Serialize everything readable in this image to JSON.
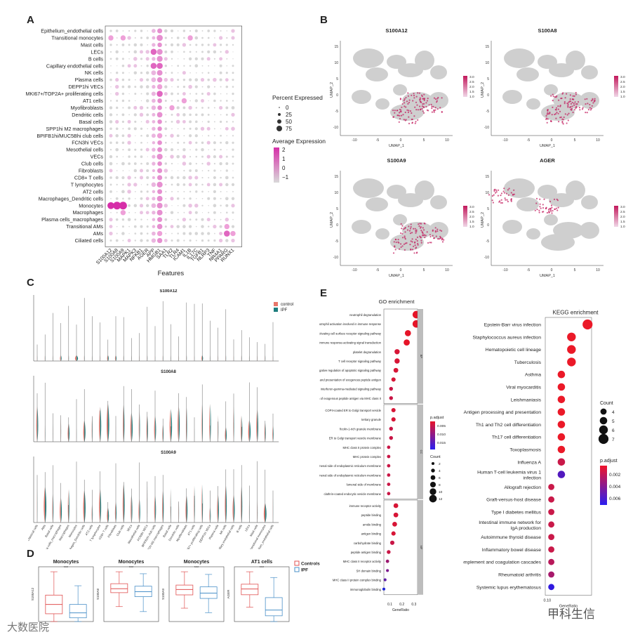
{
  "labels": {
    "A": "A",
    "B": "B",
    "C": "C",
    "D": "D",
    "E": "E"
  },
  "watermarks": {
    "left": "大数医院",
    "right": "甲科生信"
  },
  "chart_data": [
    {
      "id": "A",
      "type": "dotplot",
      "xlabel": "Features",
      "features": [
        "S100A12",
        "S100A8",
        "S100A9",
        "MAPK1",
        "MAPK3",
        "NFKB1",
        "AGER",
        "APP",
        "HMGB1",
        "SAA1",
        "TLR2",
        "TLR4",
        "ICAM1",
        "IL1B",
        "IL17C",
        "TGFB1",
        "NLRP3",
        "TNF",
        "NR4A1",
        "PPARG",
        "RUNX1"
      ],
      "cell_types": [
        "Epithelium_endothelial cells",
        "Transitional monocytes",
        "Mast cells",
        "LECs",
        "B cells",
        "Capillary endothelial cells",
        "NK cells",
        "Plasma cells",
        "DEPP1hi VECs",
        "MKI67+/TOP2A+ proliferating cells",
        "AT1 cells",
        "Myofibroblasts",
        "Dendritic cells",
        "Basal cells",
        "SPP1hi M2 macrophages",
        "BPIFB1hi/MUC5Bhi club cells",
        "FCN3hi VECs",
        "Mesothelial cells",
        "VECs",
        "Club cells",
        "Fibroblasts",
        "CD8+ T cells",
        "T lymphocytes",
        "AT2 cells",
        "Macrophages_Dendritic cells",
        "Monocytes",
        "Macrophages",
        "Plasma cells_macrophages",
        "Transitional AMs",
        "AMs",
        "Ciliated cells"
      ],
      "legend_size_title": "Percent Expressed",
      "legend_size_values": [
        "0",
        "25",
        "50",
        "75"
      ],
      "legend_color_title": "Average Expression",
      "legend_color_values": [
        "2",
        "1",
        "0",
        "−1"
      ]
    },
    {
      "id": "B",
      "type": "umap",
      "panels": [
        "S100A12",
        "S100A8",
        "S100A9",
        "AGER"
      ],
      "xlabel": "UMAP_1",
      "ylabel": "UMAP_2",
      "xticks": [
        "-10",
        "-5",
        "0",
        "5",
        "10"
      ],
      "yticks": [
        "15",
        "10",
        "5",
        "0",
        "-5",
        "-10"
      ],
      "scale_values": [
        "3.0",
        "2.5",
        "2.0",
        "1.5",
        "1.0"
      ]
    },
    {
      "id": "C",
      "type": "violin",
      "panels": [
        "S100A12",
        "S100A8",
        "S100A9"
      ],
      "ylabel": "Expression Level",
      "legend": [
        "control",
        "IPF"
      ],
      "colors": {
        "control": "#e8766a",
        "IPF": "#1d7d7d"
      },
      "cell_types": [
        "Classical cells",
        "AMs",
        "Basal cells",
        "Plasma cells_macrophages",
        "Macrophages",
        "Monocytes",
        "Macrophages_Dendritic cells",
        "AT2 cells",
        "T lymphocytes",
        "CD8+ T cells",
        "Fibroblasts",
        "Club cells",
        "VECs",
        "Mesothelial cells",
        "FCN3hi VECs",
        "BPIFB1hi club cells",
        "SPP1hi M2 macrophages",
        "Basal cells",
        "Dendritic cells",
        "Myofibroblasts",
        "AT1 cells",
        "MKI67+ proliferating cells",
        "DEPP1hi VECs",
        "Plasma cells",
        "NK cells",
        "Capillary endothelial cells",
        "B cells",
        "LECs",
        "Mast cells",
        "Transitional monocytes",
        "Epithelium_endothelial cells"
      ]
    },
    {
      "id": "D",
      "type": "boxplot",
      "legend": [
        "Controls",
        "IPF"
      ],
      "colors": {
        "Controls": "#e05050",
        "IPF": "#4a90c8"
      },
      "panels": [
        {
          "title": "Monocytes",
          "ylabel": "S100A12",
          "sig": "***",
          "controls": {
            "q1": 0.25,
            "med": 0.55,
            "q3": 0.85,
            "lo": 0.0,
            "hi": 1.6
          },
          "ipf": {
            "q1": 0.12,
            "med": 0.28,
            "q3": 0.55,
            "lo": 0.0,
            "hi": 1.15
          }
        },
        {
          "title": "Monocytes",
          "ylabel": "S100A8",
          "sig": "***",
          "controls": {
            "q1": 2.9,
            "med": 3.3,
            "q3": 3.8,
            "lo": 1.5,
            "hi": 5.0
          },
          "ipf": {
            "q1": 2.5,
            "med": 3.0,
            "q3": 3.55,
            "lo": 1.0,
            "hi": 4.8
          }
        },
        {
          "title": "Monocytes",
          "ylabel": "S100A9",
          "sig": "***",
          "controls": {
            "q1": 3.0,
            "med": 3.6,
            "q3": 4.1,
            "lo": 1.5,
            "hi": 5.6
          },
          "ipf": {
            "q1": 2.6,
            "med": 3.2,
            "q3": 3.9,
            "lo": 1.0,
            "hi": 5.3
          }
        },
        {
          "title": "AT1 cells",
          "ylabel": "AGER",
          "sig": "***",
          "controls": {
            "q1": 2.8,
            "med": 3.4,
            "q3": 3.9,
            "lo": 1.5,
            "hi": 5.2
          },
          "ipf": {
            "q1": 0.6,
            "med": 1.2,
            "q3": 2.5,
            "lo": 0.0,
            "hi": 4.6
          }
        }
      ]
    },
    {
      "id": "E-GO",
      "type": "dotplot",
      "title": "GO enrichment",
      "xlabel": "GeneRatio",
      "xticks": [
        "0.1",
        "0.2",
        "0.3"
      ],
      "groups": [
        "BP",
        "CC",
        "MF"
      ],
      "terms": [
        {
          "label": "neutrophil degranulation",
          "group": "BP",
          "x": 0.32,
          "count": 12,
          "padj": 0.001
        },
        {
          "label": "neutrophil activation involved in immune response",
          "group": "BP",
          "x": 0.32,
          "count": 12,
          "padj": 0.001
        },
        {
          "label": "immune response-activating cell surface receptor signaling pathway",
          "group": "BP",
          "x": 0.25,
          "count": 9,
          "padj": 0.001
        },
        {
          "label": "immune response-activating signal transduction",
          "group": "BP",
          "x": 0.24,
          "count": 9,
          "padj": 0.001
        },
        {
          "label": "platelet degranulation",
          "group": "BP",
          "x": 0.16,
          "count": 7,
          "padj": 0.002
        },
        {
          "label": "T cell receptor signaling pathway",
          "group": "BP",
          "x": 0.16,
          "count": 7,
          "padj": 0.002
        },
        {
          "label": "negative regulation of apoptotic signaling pathway",
          "group": "BP",
          "x": 0.15,
          "count": 6,
          "padj": 0.002
        },
        {
          "label": "antigen processing and presentation of exogenous peptide antigen",
          "group": "BP",
          "x": 0.13,
          "count": 5,
          "padj": 0.002
        },
        {
          "label": "interferon-gamma-mediated signaling pathway",
          "group": "BP",
          "x": 0.11,
          "count": 4,
          "padj": 0.003
        },
        {
          "label": "antigen processing and presentation of exogenous peptide antigen via MHC class II",
          "group": "BP",
          "x": 0.11,
          "count": 4,
          "padj": 0.003
        },
        {
          "label": "COPII-coated ER to Golgi transport vesicle",
          "group": "CC",
          "x": 0.13,
          "count": 5,
          "padj": 0.002
        },
        {
          "label": "tertiary granule",
          "group": "CC",
          "x": 0.13,
          "count": 5,
          "padj": 0.002
        },
        {
          "label": "ficolin-1-rich granule membrane",
          "group": "CC",
          "x": 0.11,
          "count": 4,
          "padj": 0.003
        },
        {
          "label": "ER to Golgi transport vesicle membrane",
          "group": "CC",
          "x": 0.11,
          "count": 4,
          "padj": 0.003
        },
        {
          "label": "MHC class II protein complex",
          "group": "CC",
          "x": 0.09,
          "count": 3,
          "padj": 0.003
        },
        {
          "label": "MHC protein complex",
          "group": "CC",
          "x": 0.09,
          "count": 3,
          "padj": 0.003
        },
        {
          "label": "integral component of lumenal side of endoplasmic reticulum membrane",
          "group": "CC",
          "x": 0.09,
          "count": 3,
          "padj": 0.003
        },
        {
          "label": "lumenal side of endoplasmic reticulum membrane",
          "group": "CC",
          "x": 0.09,
          "count": 3,
          "padj": 0.003
        },
        {
          "label": "lumenal side of membrane",
          "group": "CC",
          "x": 0.09,
          "count": 3,
          "padj": 0.003
        },
        {
          "label": "clathrin-coated endocytic vesicle membrane",
          "group": "CC",
          "x": 0.09,
          "count": 3,
          "padj": 0.003
        },
        {
          "label": "immune receptor activity",
          "group": "MF",
          "x": 0.15,
          "count": 6,
          "padj": 0.002
        },
        {
          "label": "peptide binding",
          "group": "MF",
          "x": 0.15,
          "count": 6,
          "padj": 0.002
        },
        {
          "label": "amide binding",
          "group": "MF",
          "x": 0.14,
          "count": 6,
          "padj": 0.002
        },
        {
          "label": "antigen binding",
          "group": "MF",
          "x": 0.13,
          "count": 5,
          "padj": 0.002
        },
        {
          "label": "carbohydrate binding",
          "group": "MF",
          "x": 0.12,
          "count": 5,
          "padj": 0.003
        },
        {
          "label": "peptide antigen binding",
          "group": "MF",
          "x": 0.09,
          "count": 4,
          "padj": 0.003
        },
        {
          "label": "MHC class II receptor activity",
          "group": "MF",
          "x": 0.08,
          "count": 3,
          "padj": 0.006
        },
        {
          "label": "SH domain binding",
          "group": "MF",
          "x": 0.08,
          "count": 2,
          "padj": 0.008
        },
        {
          "label": "MHC class II protein complex binding",
          "group": "MF",
          "x": 0.06,
          "count": 2,
          "padj": 0.01
        },
        {
          "label": "immunoglobulin binding",
          "group": "MF",
          "x": 0.05,
          "count": 2,
          "padj": 0.015
        }
      ],
      "padj_title": "p.adjust",
      "padj_ticks": [
        "0.005",
        "0.010",
        "0.015"
      ],
      "count_title": "Count",
      "count_ticks": [
        "2",
        "4",
        "6",
        "8",
        "10",
        "12"
      ]
    },
    {
      "id": "E-KEGG",
      "type": "dotplot",
      "title": "KEGG enrichment",
      "xlabel": "GeneRatio",
      "xticks": [
        "0.10"
      ],
      "terms": [
        {
          "label": "Epstein-Barr virus infection",
          "x": 0.3,
          "count": 7,
          "padj": 0.001
        },
        {
          "label": "Staphylococcus aureus infection",
          "x": 0.22,
          "count": 6,
          "padj": 0.001
        },
        {
          "label": "Hematopoietic cell lineage",
          "x": 0.22,
          "count": 6,
          "padj": 0.001
        },
        {
          "label": "Tuberculosis",
          "x": 0.22,
          "count": 6,
          "padj": 0.001
        },
        {
          "label": "Asthma",
          "x": 0.17,
          "count": 5,
          "padj": 0.001
        },
        {
          "label": "Viral myocarditis",
          "x": 0.17,
          "count": 5,
          "padj": 0.001
        },
        {
          "label": "Leishmaniasis",
          "x": 0.17,
          "count": 5,
          "padj": 0.001
        },
        {
          "label": "Antigen processing and presentation",
          "x": 0.17,
          "count": 5,
          "padj": 0.001
        },
        {
          "label": "Th1 and Th2 cell differentiation",
          "x": 0.17,
          "count": 5,
          "padj": 0.001
        },
        {
          "label": "Th17 cell differentiation",
          "x": 0.17,
          "count": 5,
          "padj": 0.001
        },
        {
          "label": "Toxoplasmosis",
          "x": 0.17,
          "count": 5,
          "padj": 0.001
        },
        {
          "label": "Influenza A",
          "x": 0.17,
          "count": 5,
          "padj": 0.002
        },
        {
          "label": "Human T-cell leukemia virus 1 infection",
          "x": 0.17,
          "count": 5,
          "padj": 0.0055
        },
        {
          "label": "Allograft rejection",
          "x": 0.12,
          "count": 4,
          "padj": 0.002
        },
        {
          "label": "Graft-versus-host disease",
          "x": 0.12,
          "count": 4,
          "padj": 0.002
        },
        {
          "label": "Type I diabetes mellitus",
          "x": 0.12,
          "count": 4,
          "padj": 0.002
        },
        {
          "label": "Intestinal immune network for IgA production",
          "x": 0.12,
          "count": 4,
          "padj": 0.002
        },
        {
          "label": "Autoimmune thyroid disease",
          "x": 0.12,
          "count": 4,
          "padj": 0.002
        },
        {
          "label": "Inflammatory bowel disease",
          "x": 0.12,
          "count": 4,
          "padj": 0.002
        },
        {
          "label": "Complement and coagulation cascades",
          "x": 0.12,
          "count": 4,
          "padj": 0.0025
        },
        {
          "label": "Rheumatoid arthritis",
          "x": 0.12,
          "count": 4,
          "padj": 0.003
        },
        {
          "label": "Systemic lupus erythematosus",
          "x": 0.12,
          "count": 4,
          "padj": 0.0065
        }
      ],
      "count_title": "Count",
      "count_ticks": [
        "4",
        "5",
        "6",
        "7"
      ],
      "padj_title": "p.adjust",
      "padj_ticks": [
        "0.002",
        "0.004",
        "0.006"
      ]
    }
  ]
}
